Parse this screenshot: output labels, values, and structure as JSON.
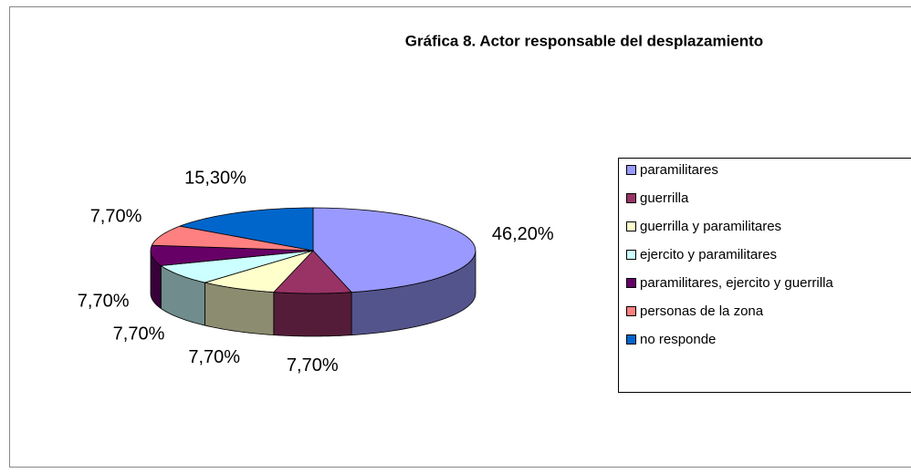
{
  "chart_data": {
    "type": "pie3d",
    "title": "Gráfica 8.  Actor responsable del  desplazamiento",
    "categories": [
      "paramilitares",
      "guerrilla",
      "guerrilla y paramilitares",
      "ejercito y paramilitares",
      "paramilitares, ejercito y guerrilla",
      "personas de la zona",
      "no responde"
    ],
    "values": [
      46.2,
      7.7,
      7.7,
      7.7,
      7.7,
      7.7,
      15.3
    ],
    "value_labels": [
      "46,20%",
      "7,70%",
      "7,70%",
      "7,70%",
      "7,70%",
      "7,70%",
      "15,30%"
    ],
    "colors": [
      "#9999ff",
      "#993366",
      "#ffffcc",
      "#ccffff",
      "#660066",
      "#ff8080",
      "#0066cc"
    ],
    "legend": "right"
  }
}
